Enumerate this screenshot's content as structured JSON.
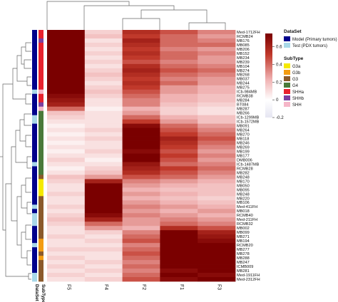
{
  "chart_data": {
    "type": "heatmap",
    "columns": [
      "F5",
      "F4",
      "F2",
      "F1",
      "F3"
    ],
    "rows": [
      "Med-1712FH",
      "RCMB24",
      "MB176",
      "MB085",
      "MB206",
      "MB152",
      "MB234",
      "MB239",
      "MB104",
      "MB274",
      "MB268",
      "MB037",
      "MB244",
      "MB275",
      "ICb-984MB",
      "RCMB38",
      "MB284",
      "BT084",
      "MB287",
      "MB266",
      "ICb-1299MB",
      "ICb-1572MB",
      "MB091",
      "MB264",
      "MB270",
      "MB118",
      "MB246",
      "MB269",
      "MB199",
      "MB177",
      "DMB006",
      "ICb-1487MB",
      "RCMB28",
      "MB282",
      "MB248",
      "MB170",
      "MB050",
      "MB095",
      "MB248",
      "MB220",
      "MB106",
      "Med-411FH",
      "MB018",
      "RCMB40",
      "Med-211FH",
      "RCMB32",
      "MB002",
      "MB099",
      "MB271",
      "MB194",
      "RCMB20",
      "MB277",
      "MB278",
      "MB288",
      "MB247",
      "ICMB009",
      "MB281",
      "Med-1911FH",
      "Med-2312FH"
    ],
    "values": [
      [
        0.9,
        0.15,
        0.55,
        0.45,
        0.35
      ],
      [
        0.85,
        0.2,
        0.5,
        0.4,
        0.3
      ],
      [
        0.95,
        0.1,
        0.6,
        0.4,
        0.35
      ],
      [
        0.9,
        0.15,
        0.55,
        0.4,
        0.4
      ],
      [
        0.9,
        0.1,
        0.5,
        0.35,
        0.3
      ],
      [
        0.95,
        0.15,
        0.55,
        0.4,
        0.35
      ],
      [
        0.92,
        0.1,
        0.5,
        0.4,
        0.3
      ],
      [
        0.88,
        0.15,
        0.45,
        0.35,
        0.3
      ],
      [
        0.95,
        0.1,
        0.55,
        0.4,
        0.35
      ],
      [
        0.9,
        0.15,
        0.6,
        0.45,
        0.4
      ],
      [
        0.95,
        0.2,
        0.55,
        0.4,
        0.35
      ],
      [
        0.88,
        0.15,
        0.5,
        0.35,
        0.3
      ],
      [
        0.9,
        0.1,
        0.55,
        0.4,
        0.3
      ],
      [
        0.8,
        0.15,
        0.5,
        0.3,
        0.25
      ],
      [
        0.75,
        0.2,
        0.45,
        0.3,
        0.25
      ],
      [
        0.7,
        0.15,
        0.4,
        0.25,
        0.2
      ],
      [
        0.65,
        0.1,
        0.35,
        0.25,
        0.2
      ],
      [
        0.6,
        0.1,
        0.35,
        0.2,
        0.15
      ],
      [
        0.4,
        0.05,
        0.25,
        0.15,
        0.1
      ],
      [
        0.2,
        0.1,
        0.3,
        0.15,
        0.1
      ],
      [
        0.15,
        0.1,
        0.4,
        0.25,
        0.2
      ],
      [
        0.1,
        0.1,
        0.5,
        0.3,
        0.2
      ],
      [
        0.05,
        0.1,
        0.7,
        0.4,
        0.3
      ],
      [
        0.1,
        0.15,
        0.8,
        0.45,
        0.35
      ],
      [
        0.05,
        0.1,
        0.85,
        0.5,
        0.4
      ],
      [
        0.1,
        0.15,
        0.75,
        0.6,
        0.45
      ],
      [
        0.05,
        0.1,
        0.8,
        0.55,
        0.4
      ],
      [
        0.1,
        0.1,
        0.75,
        0.5,
        0.35
      ],
      [
        0.05,
        0.15,
        0.7,
        0.45,
        0.3
      ],
      [
        0.1,
        0.1,
        0.8,
        0.5,
        0.35
      ],
      [
        0.15,
        0.05,
        0.75,
        0.45,
        0.3
      ],
      [
        0.1,
        0.1,
        0.65,
        0.4,
        0.35
      ],
      [
        0.05,
        0.15,
        0.6,
        0.5,
        0.4
      ],
      [
        0.1,
        0.2,
        0.55,
        0.45,
        0.35
      ],
      [
        0.2,
        0.3,
        0.45,
        0.4,
        0.3
      ],
      [
        0.15,
        0.6,
        0.35,
        0.3,
        0.25
      ],
      [
        0.1,
        0.85,
        0.3,
        0.25,
        0.2
      ],
      [
        0.1,
        0.9,
        0.25,
        0.2,
        0.2
      ],
      [
        0.15,
        0.95,
        0.3,
        0.25,
        0.2
      ],
      [
        0.1,
        0.9,
        0.25,
        0.2,
        0.15
      ],
      [
        0.1,
        0.85,
        0.3,
        0.25,
        0.2
      ],
      [
        0.15,
        0.8,
        0.35,
        0.3,
        0.25
      ],
      [
        0.1,
        0.75,
        0.3,
        0.25,
        0.3
      ],
      [
        0.15,
        0.7,
        0.35,
        0.3,
        0.25
      ],
      [
        0.2,
        0.6,
        0.3,
        0.35,
        0.3
      ],
      [
        0.15,
        0.4,
        0.3,
        0.4,
        0.35
      ],
      [
        0.1,
        0.3,
        0.25,
        0.55,
        0.45
      ],
      [
        0.1,
        0.15,
        0.35,
        0.85,
        0.6
      ],
      [
        0.15,
        0.1,
        0.4,
        0.9,
        0.65
      ],
      [
        0.1,
        0.15,
        0.45,
        0.85,
        0.7
      ],
      [
        0.1,
        0.1,
        0.35,
        0.8,
        0.75
      ],
      [
        0.15,
        0.15,
        0.4,
        0.85,
        0.8
      ],
      [
        0.1,
        0.1,
        0.45,
        0.8,
        0.85
      ],
      [
        0.15,
        0.1,
        0.4,
        0.75,
        0.8
      ],
      [
        0.1,
        0.15,
        0.35,
        0.8,
        0.85
      ],
      [
        0.15,
        0.1,
        0.4,
        0.75,
        0.8
      ],
      [
        0.1,
        0.15,
        0.35,
        0.7,
        0.75
      ],
      [
        0.15,
        0.1,
        0.4,
        0.75,
        0.7
      ],
      [
        0.1,
        0.15,
        0.45,
        0.7,
        0.75
      ]
    ],
    "dataset": [
      "Model",
      "Model",
      "Model",
      "Model",
      "Model",
      "Model",
      "Model",
      "Model",
      "Model",
      "Model",
      "Model",
      "Model",
      "Model",
      "Model",
      "Test",
      "Model",
      "Model",
      "Model",
      "Model",
      "Model",
      "Test",
      "Test",
      "Model",
      "Model",
      "Model",
      "Model",
      "Model",
      "Model",
      "Model",
      "Model",
      "Model",
      "Test",
      "Model",
      "Model",
      "Model",
      "Model",
      "Model",
      "Model",
      "Model",
      "Model",
      "Model",
      "Test",
      "Model",
      "Test",
      "Test",
      "Test",
      "Model",
      "Model",
      "Model",
      "Model",
      "Test",
      "Model",
      "Model",
      "Model",
      "Model",
      "Model",
      "Model",
      "Test",
      "Test"
    ],
    "subtype": [
      "SHHa",
      "SHHa",
      "SHHb",
      "SHHa",
      "SHHa",
      "SHHa",
      "SHHa",
      "SHHa",
      "SHHa",
      "SHHa",
      "SHHa",
      "SHHa",
      "SHHa",
      "SHHa",
      "SHH",
      "SHHa",
      "SHHa",
      "SHHb",
      "SHH",
      "G4",
      "G4",
      "G4",
      "G4",
      "G4",
      "G4",
      "G4",
      "G4",
      "G4",
      "G4",
      "G4",
      "G4",
      "G4",
      "G4",
      "G4",
      "G3",
      "G3a",
      "G3a",
      "G3a",
      "G3a",
      "G3",
      "G3",
      "G3",
      "G3",
      "G3",
      "G3",
      "G3",
      "G3",
      "G3",
      "G3",
      "G3b",
      "G3b",
      "G3b",
      "G3",
      "G3b",
      "G3",
      "G3",
      "G3",
      "G3",
      "G3"
    ],
    "colorscale": {
      "low": "#e8e8f0",
      "mid": "#ffffff",
      "high": "#8b0000",
      "ticks": [
        -0.2,
        0,
        0.2,
        0.4,
        0.6
      ],
      "range": [
        -0.2,
        0.75
      ]
    },
    "annotation_labels": [
      "DataSet",
      "SubType"
    ],
    "legend_dataset": {
      "title": "DataSet",
      "items": [
        {
          "label": "Model (Primary tumors)",
          "color": "#00008b"
        },
        {
          "label": "Test (PDX tumors)",
          "color": "#a8d8e8"
        }
      ]
    },
    "legend_subtype": {
      "title": "SubType",
      "items": [
        {
          "label": "G3a",
          "color": "#f5e900"
        },
        {
          "label": "G3b",
          "color": "#f39c12"
        },
        {
          "label": "G3",
          "color": "#8b5a2b"
        },
        {
          "label": "G4",
          "color": "#4a7a3a"
        },
        {
          "label": "SHHa",
          "color": "#e8222e"
        },
        {
          "label": "SHHb",
          "color": "#7b3fa0"
        },
        {
          "label": "SHH",
          "color": "#f5b6c8"
        }
      ]
    }
  }
}
